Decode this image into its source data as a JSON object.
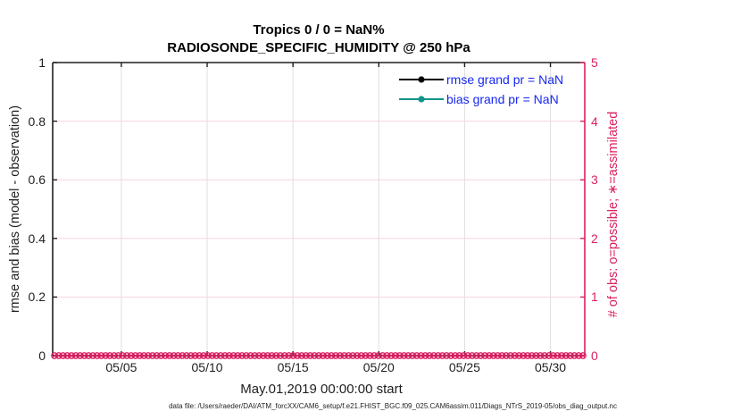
{
  "chart_data": {
    "type": "line",
    "title": "Tropics 0 / 0 = NaN%",
    "subtitle": "RADIOSONDE_SPECIFIC_HUMIDITY @ 250 hPa",
    "xlabel": "May.01,2019 00:00:00 start",
    "ylabel_left": "rmse and bias (model - observation)",
    "ylabel_right": "# of obs: o=possible; ∗=assimilated",
    "x_axis": {
      "start_label": "May.01,2019 00:00:00",
      "span_days": 31,
      "tick_days": [
        5,
        10,
        15,
        20,
        25,
        30
      ],
      "tick_labels": [
        "05/05",
        "05/10",
        "05/15",
        "05/20",
        "05/25",
        "05/30"
      ]
    },
    "y_left": {
      "lim": [
        0,
        1
      ],
      "tick_values": [
        0,
        0.2,
        0.4,
        0.6,
        0.8,
        1
      ],
      "tick_labels": [
        "0",
        "0.2",
        "0.4",
        "0.6",
        "0.8",
        "1"
      ]
    },
    "y_right": {
      "lim": [
        0,
        5
      ],
      "tick_values": [
        0,
        1,
        2,
        3,
        4,
        5
      ],
      "tick_labels": [
        "0",
        "1",
        "2",
        "3",
        "4",
        "5"
      ]
    },
    "grid": true,
    "legend": {
      "position": "top-right-inside",
      "entries": [
        {
          "label": "rmse grand pr = NaN",
          "color": "#000000",
          "marker": "circle"
        },
        {
          "label": "bias grand pr = NaN",
          "color": "#0e948a",
          "marker": "circle"
        }
      ]
    },
    "series": [
      {
        "name": "rmse",
        "grand_pr": "NaN",
        "values": []
      },
      {
        "name": "bias",
        "grand_pr": "NaN",
        "values": []
      },
      {
        "name": "obs_possible_count",
        "marker": "o",
        "y_value": 0,
        "n_points": 125,
        "note": "observation count markers plotted at 0 for every time bin"
      }
    ]
  },
  "footer": {
    "data_file": "data file: /Users/raeder/DAI/ATM_forcXX/CAM6_setup/f.e21.FHIST_BGC.f09_025.CAM6assim.011/Diags_NTrS_2019-05/obs_diag_output.nc"
  },
  "colors": {
    "axis_dark": "#1f1f1f",
    "accent_pink": "#da2062",
    "teal": "#0e948a",
    "legend_blue": "#1727f2",
    "grid_gray": "#e0e0e0",
    "grid_pink": "#f6d5e2"
  }
}
